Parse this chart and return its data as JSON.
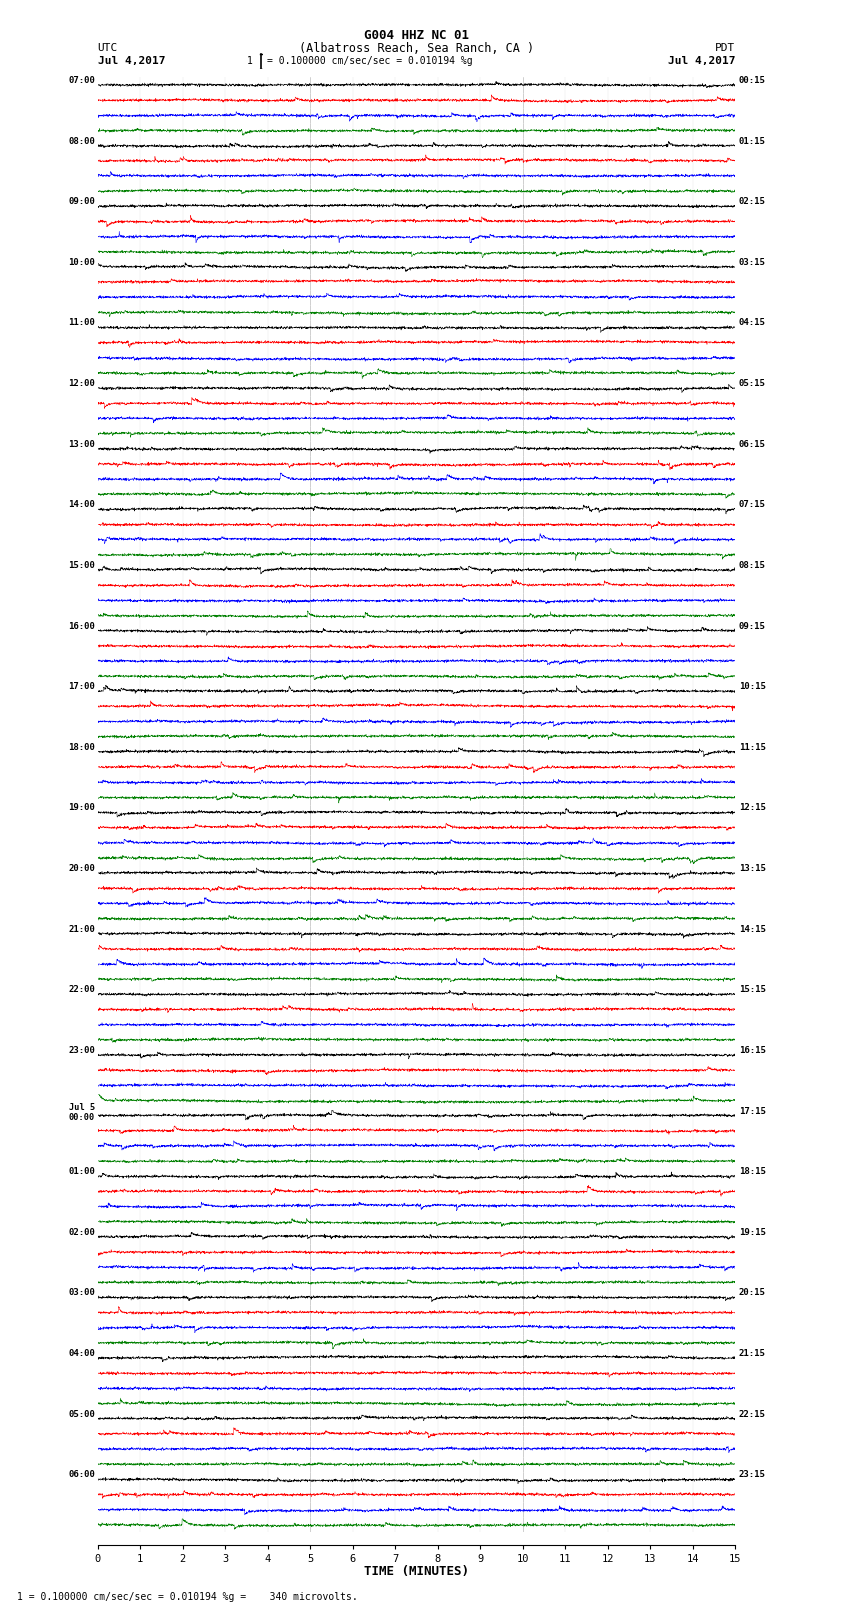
{
  "title_line1": "G004 HHZ NC 01",
  "title_line2": "(Albatross Reach, Sea Ranch, CA )",
  "scale_text": "= 0.100000 cm/sec/sec = 0.010194 %g",
  "bottom_text": "1 = 0.100000 cm/sec/sec = 0.010194 %g =    340 microvolts.",
  "xlabel": "TIME (MINUTES)",
  "left_label": "UTC",
  "left_date": "Jul 4,2017",
  "right_label": "PDT",
  "right_date": "Jul 4,2017",
  "left_times": [
    "07:00",
    "08:00",
    "09:00",
    "10:00",
    "11:00",
    "12:00",
    "13:00",
    "14:00",
    "15:00",
    "16:00",
    "17:00",
    "18:00",
    "19:00",
    "20:00",
    "21:00",
    "22:00",
    "23:00",
    "Jul 5\n00:00",
    "01:00",
    "02:00",
    "03:00",
    "04:00",
    "05:00",
    "06:00"
  ],
  "right_times": [
    "00:15",
    "01:15",
    "02:15",
    "03:15",
    "04:15",
    "05:15",
    "06:15",
    "07:15",
    "08:15",
    "09:15",
    "10:15",
    "11:15",
    "12:15",
    "13:15",
    "14:15",
    "15:15",
    "16:15",
    "17:15",
    "18:15",
    "19:15",
    "20:15",
    "21:15",
    "22:15",
    "23:15"
  ],
  "trace_colors": [
    "black",
    "red",
    "blue",
    "green"
  ],
  "n_rows": 24,
  "traces_per_row": 4,
  "x_min": 0,
  "x_max": 15,
  "x_ticks": [
    0,
    1,
    2,
    3,
    4,
    5,
    6,
    7,
    8,
    9,
    10,
    11,
    12,
    13,
    14,
    15
  ],
  "fig_width": 8.5,
  "fig_height": 16.13,
  "bg_color": "white",
  "grid_minutes": [
    5,
    10
  ],
  "noise_base": [
    0.35,
    0.55,
    0.45,
    0.3
  ],
  "noise_high": [
    0.7,
    1.1,
    0.9,
    0.55
  ]
}
